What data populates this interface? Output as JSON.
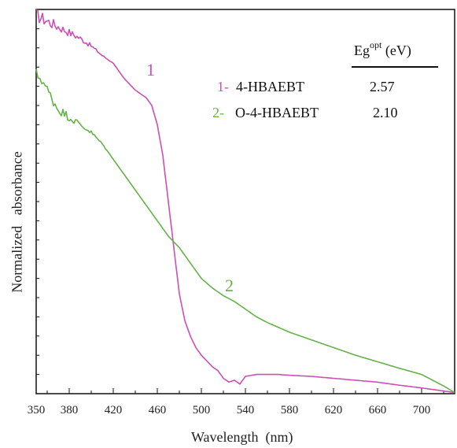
{
  "chart_data": {
    "type": "line",
    "xlabel": "Wavelength  (nm)",
    "ylabel": "Normalized   absorbance",
    "xlim": [
      350,
      730
    ],
    "ylim": [
      0,
      1
    ],
    "x_ticks": [
      "350",
      "380",
      "420",
      "460",
      "500",
      "540",
      "580",
      "620",
      "660",
      "700"
    ],
    "x_tick_values": [
      350,
      380,
      420,
      460,
      500,
      540,
      580,
      620,
      660,
      700
    ],
    "legend_header": "Eg",
    "legend_header_sup": "opt",
    "legend_header_unit": "(eV)",
    "series": [
      {
        "name": "4-HBAEBT",
        "prefix": "1-",
        "tag": "1",
        "eg": "2.57",
        "color": "#cc4fb6",
        "noise": true,
        "x": [
          350,
          360,
          370,
          380,
          390,
          400,
          410,
          420,
          430,
          440,
          450,
          455,
          460,
          465,
          470,
          475,
          480,
          485,
          490,
          495,
          500,
          505,
          510,
          515,
          520,
          525,
          530,
          535,
          540,
          550,
          560,
          570,
          580,
          600,
          620,
          640,
          660,
          680,
          700,
          720,
          730
        ],
        "y": [
          0.985,
          0.97,
          0.955,
          0.94,
          0.925,
          0.905,
          0.88,
          0.86,
          0.82,
          0.79,
          0.77,
          0.75,
          0.7,
          0.62,
          0.5,
          0.38,
          0.26,
          0.19,
          0.15,
          0.12,
          0.1,
          0.085,
          0.07,
          0.06,
          0.04,
          0.03,
          0.035,
          0.025,
          0.045,
          0.05,
          0.05,
          0.05,
          0.048,
          0.045,
          0.04,
          0.035,
          0.03,
          0.022,
          0.015,
          0.007,
          0.003
        ]
      },
      {
        "name": "O-4-HBAEBT",
        "prefix": "2-",
        "tag": "2",
        "eg": "2.10",
        "color": "#63b347",
        "noise": true,
        "x": [
          350,
          355,
          360,
          370,
          380,
          390,
          400,
          410,
          420,
          430,
          440,
          450,
          460,
          470,
          480,
          490,
          500,
          510,
          520,
          530,
          540,
          550,
          560,
          580,
          600,
          620,
          640,
          660,
          680,
          700,
          720,
          730
        ],
        "y": [
          0.83,
          0.82,
          0.79,
          0.74,
          0.72,
          0.7,
          0.68,
          0.65,
          0.61,
          0.57,
          0.53,
          0.49,
          0.45,
          0.41,
          0.38,
          0.34,
          0.3,
          0.275,
          0.255,
          0.24,
          0.22,
          0.2,
          0.185,
          0.16,
          0.14,
          0.12,
          0.1,
          0.083,
          0.066,
          0.05,
          0.02,
          0.003
        ]
      }
    ]
  }
}
